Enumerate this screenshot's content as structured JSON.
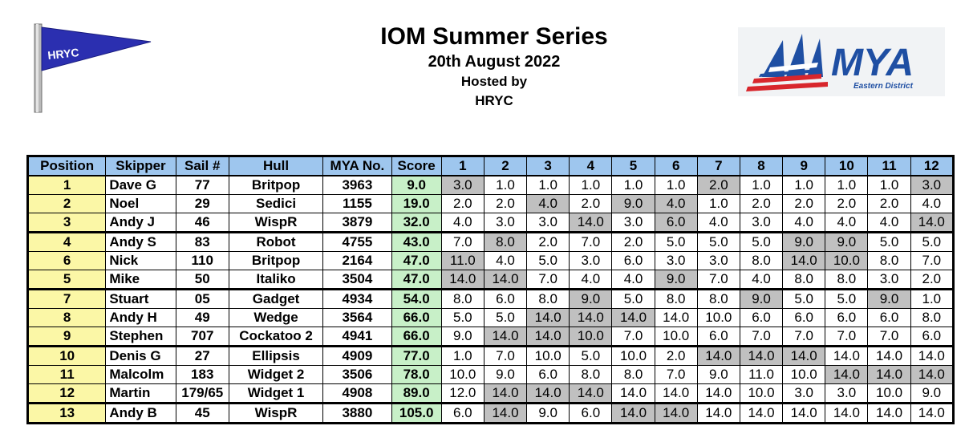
{
  "header": {
    "title": "IOM Summer Series",
    "date": "20th August 2022",
    "hosted_line1": "Hosted by",
    "hosted_line2": "HRYC"
  },
  "logos": {
    "left_text": "HRYC",
    "right_text": "MYA",
    "right_subtext": "Eastern District"
  },
  "colors": {
    "header_bg": "#9ec6ee",
    "position_bg": "#fbf7a6",
    "score_bg": "#c8f0c8",
    "discard_bg": "#c0c0c0",
    "flag_blue": "#2b2fb0",
    "mya_blue": "#1f4fa3",
    "mya_red": "#d8262c"
  },
  "table": {
    "columns": [
      "Position",
      "Skipper",
      "Sail #",
      "Hull",
      "MYA No.",
      "Score",
      "1",
      "2",
      "3",
      "4",
      "5",
      "6",
      "7",
      "8",
      "9",
      "10",
      "11",
      "12"
    ],
    "rows": [
      {
        "position": "1",
        "skipper": "Dave G",
        "sail": "77",
        "hull": "Britpop",
        "mya": "3963",
        "score": "9.0",
        "races": [
          "3.0",
          "1.0",
          "1.0",
          "1.0",
          "1.0",
          "1.0",
          "2.0",
          "1.0",
          "1.0",
          "1.0",
          "1.0",
          "3.0"
        ],
        "discards": [
          0,
          6,
          11
        ]
      },
      {
        "position": "2",
        "skipper": "Noel",
        "sail": "29",
        "hull": "Sedici",
        "mya": "1155",
        "score": "19.0",
        "races": [
          "2.0",
          "2.0",
          "4.0",
          "2.0",
          "9.0",
          "4.0",
          "1.0",
          "2.0",
          "2.0",
          "2.0",
          "2.0",
          "4.0"
        ],
        "discards": [
          2,
          4,
          5
        ]
      },
      {
        "position": "3",
        "skipper": "Andy J",
        "sail": "46",
        "hull": "WispR",
        "mya": "3879",
        "score": "32.0",
        "races": [
          "4.0",
          "3.0",
          "3.0",
          "14.0",
          "3.0",
          "6.0",
          "4.0",
          "3.0",
          "4.0",
          "4.0",
          "4.0",
          "14.0"
        ],
        "discards": [
          3,
          5,
          11
        ]
      },
      {
        "position": "4",
        "skipper": "Andy S",
        "sail": "83",
        "hull": "Robot",
        "mya": "4755",
        "score": "43.0",
        "races": [
          "7.0",
          "8.0",
          "2.0",
          "7.0",
          "2.0",
          "5.0",
          "5.0",
          "5.0",
          "9.0",
          "9.0",
          "5.0",
          "5.0"
        ],
        "discards": [
          1,
          8,
          9
        ]
      },
      {
        "position": "6",
        "skipper": "Nick",
        "sail": "110",
        "hull": "Britpop",
        "mya": "2164",
        "score": "47.0",
        "races": [
          "11.0",
          "4.0",
          "5.0",
          "3.0",
          "6.0",
          "3.0",
          "3.0",
          "8.0",
          "14.0",
          "10.0",
          "8.0",
          "7.0"
        ],
        "discards": [
          0,
          8,
          9
        ]
      },
      {
        "position": "5",
        "skipper": "Mike",
        "sail": "50",
        "hull": "Italiko",
        "mya": "3504",
        "score": "47.0",
        "races": [
          "14.0",
          "14.0",
          "7.0",
          "4.0",
          "4.0",
          "9.0",
          "7.0",
          "4.0",
          "8.0",
          "8.0",
          "3.0",
          "2.0"
        ],
        "discards": [
          0,
          1,
          5
        ]
      },
      {
        "position": "7",
        "skipper": "Stuart",
        "sail": "05",
        "hull": "Gadget",
        "mya": "4934",
        "score": "54.0",
        "races": [
          "8.0",
          "6.0",
          "8.0",
          "9.0",
          "5.0",
          "8.0",
          "8.0",
          "9.0",
          "5.0",
          "5.0",
          "9.0",
          "1.0"
        ],
        "discards": [
          3,
          7,
          10
        ]
      },
      {
        "position": "8",
        "skipper": "Andy H",
        "sail": "49",
        "hull": "Wedge",
        "mya": "3564",
        "score": "66.0",
        "races": [
          "5.0",
          "5.0",
          "14.0",
          "14.0",
          "14.0",
          "14.0",
          "10.0",
          "6.0",
          "6.0",
          "6.0",
          "6.0",
          "8.0"
        ],
        "discards": [
          2,
          3,
          4
        ]
      },
      {
        "position": "9",
        "skipper": "Stephen",
        "sail": "707",
        "hull": "Cockatoo 2",
        "mya": "4941",
        "score": "66.0",
        "races": [
          "9.0",
          "14.0",
          "14.0",
          "10.0",
          "7.0",
          "10.0",
          "6.0",
          "7.0",
          "7.0",
          "7.0",
          "7.0",
          "6.0"
        ],
        "discards": [
          1,
          2,
          3
        ]
      },
      {
        "position": "10",
        "skipper": "Denis G",
        "sail": "27",
        "hull": "Ellipsis",
        "mya": "4909",
        "score": "77.0",
        "races": [
          "1.0",
          "7.0",
          "10.0",
          "5.0",
          "10.0",
          "2.0",
          "14.0",
          "14.0",
          "14.0",
          "14.0",
          "14.0",
          "14.0"
        ],
        "discards": [
          6,
          7,
          8
        ]
      },
      {
        "position": "11",
        "skipper": "Malcolm",
        "sail": "183",
        "hull": "Widget 2",
        "mya": "3506",
        "score": "78.0",
        "races": [
          "10.0",
          "9.0",
          "6.0",
          "8.0",
          "8.0",
          "7.0",
          "9.0",
          "11.0",
          "10.0",
          "14.0",
          "14.0",
          "14.0"
        ],
        "discards": [
          9,
          10,
          11
        ]
      },
      {
        "position": "12",
        "skipper": "Martin",
        "sail": "179/65",
        "hull": "Widget 1",
        "mya": "4908",
        "score": "89.0",
        "races": [
          "12.0",
          "14.0",
          "14.0",
          "14.0",
          "14.0",
          "14.0",
          "14.0",
          "10.0",
          "3.0",
          "3.0",
          "10.0",
          "9.0"
        ],
        "discards": [
          1,
          2,
          3
        ]
      },
      {
        "position": "13",
        "skipper": "Andy B",
        "sail": "45",
        "hull": "WispR",
        "mya": "3880",
        "score": "105.0",
        "races": [
          "6.0",
          "14.0",
          "9.0",
          "6.0",
          "14.0",
          "14.0",
          "14.0",
          "14.0",
          "14.0",
          "14.0",
          "14.0",
          "14.0"
        ],
        "discards": [
          1,
          4,
          5
        ]
      }
    ]
  }
}
